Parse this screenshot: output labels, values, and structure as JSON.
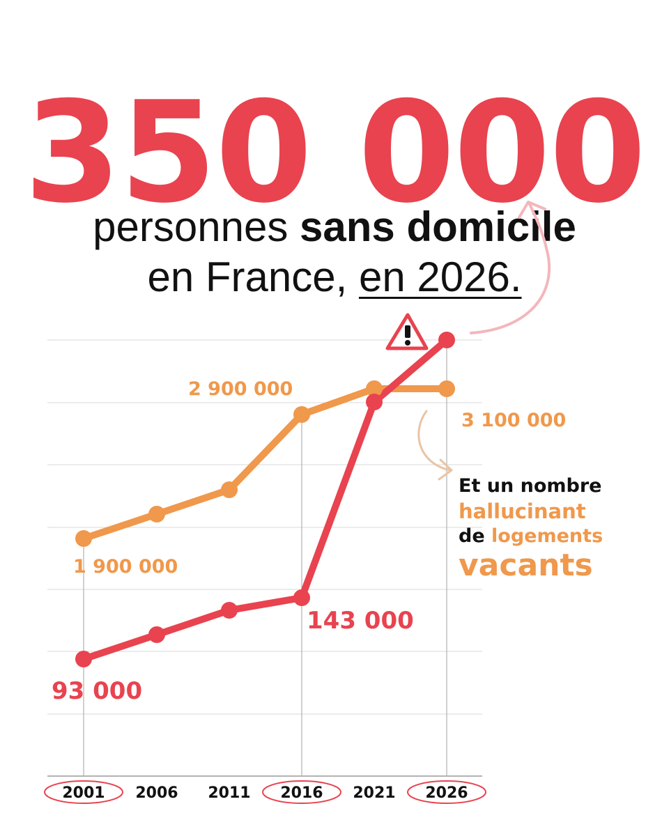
{
  "headline": {
    "value": "350 000",
    "line1_pre": "personnes ",
    "line1_bold": "sans domicile",
    "line2_pre": "en France, ",
    "line2_underlined": "en 2026."
  },
  "note": {
    "line1": "Et un nombre",
    "line2": "hallucinant",
    "line3_pre": "de ",
    "line3_highlight": "logements",
    "line4": "vacants"
  },
  "colors": {
    "homeless": "#e8434f",
    "vacant": "#f0984b",
    "grid": "#d9d9d9",
    "text": "#111111"
  },
  "icons": [
    "warning-icon",
    "curved-arrow-icon"
  ],
  "chart_data": {
    "type": "line",
    "x": [
      2001,
      2006,
      2011,
      2016,
      2021,
      2026
    ],
    "circled_years": [
      2001,
      2016,
      2026
    ],
    "grid": true,
    "series": [
      {
        "key": "vacant",
        "color": "#f0984b",
        "values": [
          1900000,
          2100000,
          2300000,
          2900000,
          3100000,
          3100000
        ],
        "labels": [
          {
            "index": 0,
            "text": "1 900 000"
          },
          {
            "index": 3,
            "text": "2 900 000"
          },
          {
            "index": 5,
            "text": "3 100 000"
          }
        ]
      },
      {
        "key": "homeless",
        "color": "#e8434f",
        "values": [
          93000,
          103000,
          113000,
          143000,
          300000,
          350000
        ],
        "labels": [
          {
            "index": 0,
            "text": "93 000"
          },
          {
            "index": 3,
            "text": "143 000"
          }
        ]
      }
    ]
  }
}
